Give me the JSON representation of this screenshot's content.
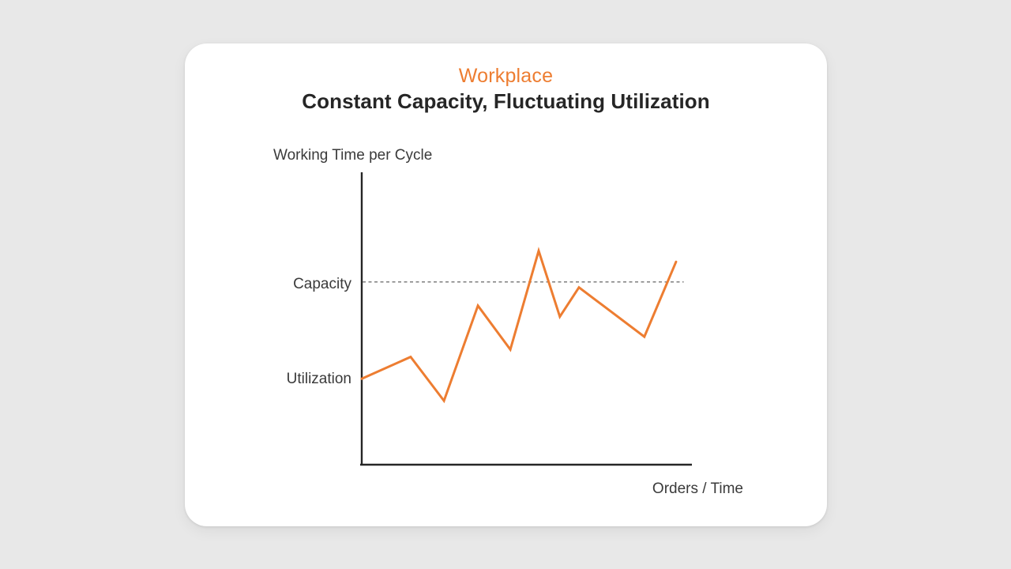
{
  "page": {
    "background_color": "#e8e8e8",
    "card_color": "#ffffff"
  },
  "header": {
    "eyebrow": "Workplace",
    "eyebrow_color": "#ED7D31",
    "title": "Constant Capacity, Fluctuating Utilization",
    "title_color": "#262626"
  },
  "chart_data": {
    "type": "line",
    "title": "Constant Capacity, Fluctuating Utilization",
    "xlabel": "Orders / Time",
    "ylabel": "Working Time per Cycle",
    "ylim": [
      0,
      160
    ],
    "grid": false,
    "x_axis_ticks": [],
    "y_axis_ticks": [],
    "axis_color": "#262626",
    "reference_line": {
      "label": "Capacity",
      "value": 100,
      "style": "dashed",
      "color": "#7f7f7f"
    },
    "series": [
      {
        "name": "Utilization",
        "color": "#ED7D31",
        "line_width": 3,
        "x": [
          0,
          0.148,
          0.249,
          0.352,
          0.45,
          0.536,
          0.6,
          0.658,
          0.856,
          0.952
        ],
        "values": [
          47,
          59,
          35,
          87,
          63,
          117,
          81,
          97,
          70,
          111
        ]
      }
    ],
    "annotations": {
      "capacity_label": "Capacity",
      "utilization_label": "Utilization",
      "utilization_label_value": 47
    }
  }
}
